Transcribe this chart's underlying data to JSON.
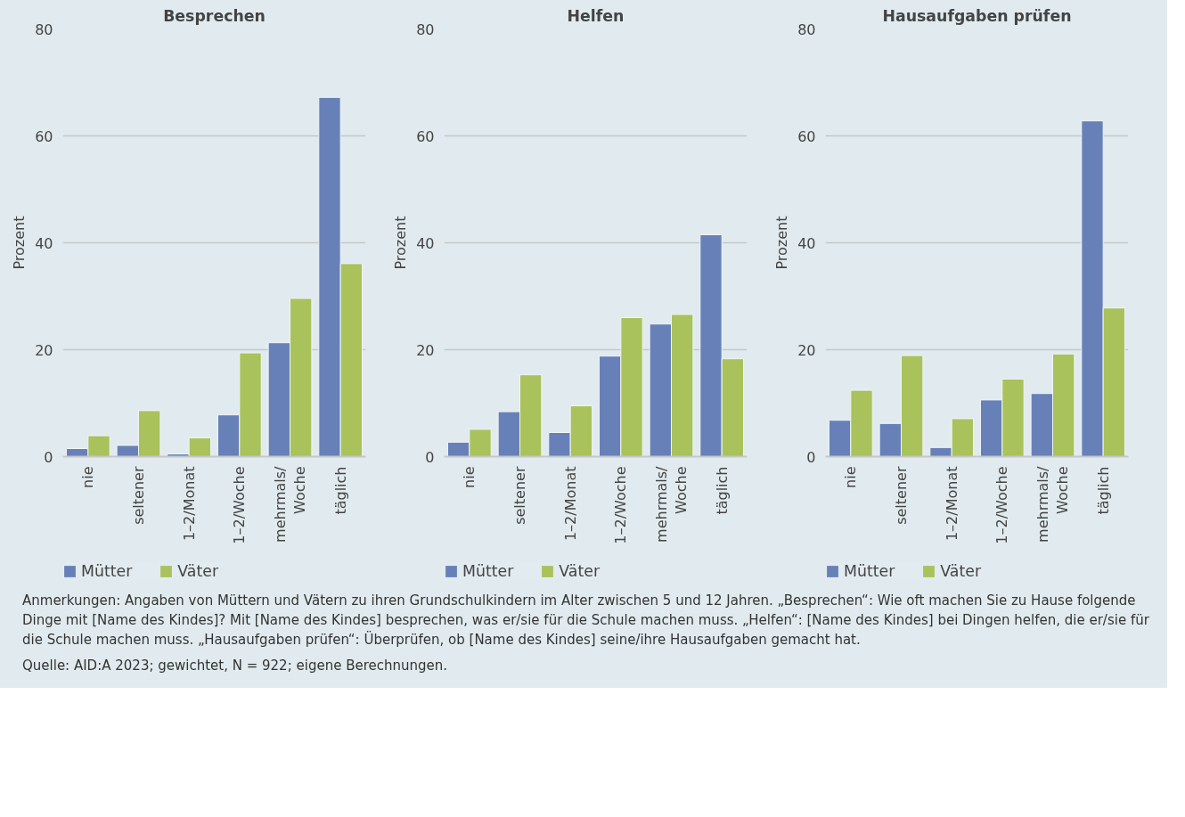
{
  "chart_data": [
    {
      "type": "bar",
      "title": "Besprechen",
      "ylabel": "Prozent",
      "categories": [
        "nie",
        "seltener",
        "1–2/Monat",
        "1–2/Woche",
        "mehrmals/\nWoche",
        "täglich"
      ],
      "ylim": [
        0,
        80
      ],
      "yticks": [
        0,
        20,
        40,
        60,
        80
      ],
      "grid": "y",
      "legend": "bottom",
      "series": [
        {
          "name": "Mütter",
          "color": "#6781b8",
          "values": [
            1.5,
            2.1,
            0.5,
            7.8,
            21.3,
            67.2
          ]
        },
        {
          "name": "Väter",
          "color": "#a9c25b",
          "values": [
            3.9,
            8.6,
            3.5,
            19.4,
            29.6,
            36.1
          ]
        }
      ]
    },
    {
      "type": "bar",
      "title": "Helfen",
      "ylabel": "Prozent",
      "categories": [
        "nie",
        "seltener",
        "1–2/Monat",
        "1–2/Woche",
        "mehrmals/\nWoche",
        "täglich"
      ],
      "ylim": [
        0,
        80
      ],
      "yticks": [
        0,
        20,
        40,
        60,
        80
      ],
      "grid": "y",
      "legend": "bottom",
      "series": [
        {
          "name": "Mütter",
          "color": "#6781b8",
          "values": [
            2.7,
            8.4,
            4.5,
            18.8,
            24.8,
            41.5
          ]
        },
        {
          "name": "Väter",
          "color": "#a9c25b",
          "values": [
            5.1,
            15.3,
            9.5,
            26.0,
            26.6,
            18.3
          ]
        }
      ]
    },
    {
      "type": "bar",
      "title": "Hausaufgaben prüfen",
      "ylabel": "Prozent",
      "categories": [
        "nie",
        "seltener",
        "1–2/Monat",
        "1–2/Woche",
        "mehrmals/\nWoche",
        "täglich"
      ],
      "ylim": [
        0,
        80
      ],
      "yticks": [
        0,
        20,
        40,
        60,
        80
      ],
      "grid": "y",
      "legend": "bottom",
      "series": [
        {
          "name": "Mütter",
          "color": "#6781b8",
          "values": [
            6.8,
            6.2,
            1.7,
            10.6,
            11.8,
            62.8
          ]
        },
        {
          "name": "Väter",
          "color": "#a9c25b",
          "values": [
            12.4,
            18.9,
            7.1,
            14.5,
            19.2,
            27.8
          ]
        }
      ],
      "annotations": [
        "Anmerkungen: Angaben von Müttern und Vätern zu ihren Grundschulkindern im Alter zwischen 5 und 12 Jahren. „Besprechen“: Wie oft machen Sie zu Hause folgende Dinge mit [Name des Kindes]? Mit [Name des Kindes] besprechen, was er/sie für die Schule machen muss. „Helfen“: [Name des Kindes] bei Dingen helfen, die er/sie für die Schule machen muss. „Hausaufgaben prüfen“: Überprüfen, ob [Name des Kindes] seine/ihre Hausaufgaben gemacht hat.",
        "Quelle: AID:A 2023; gewichtet, N = 922; eigene Berechnungen."
      ]
    }
  ]
}
